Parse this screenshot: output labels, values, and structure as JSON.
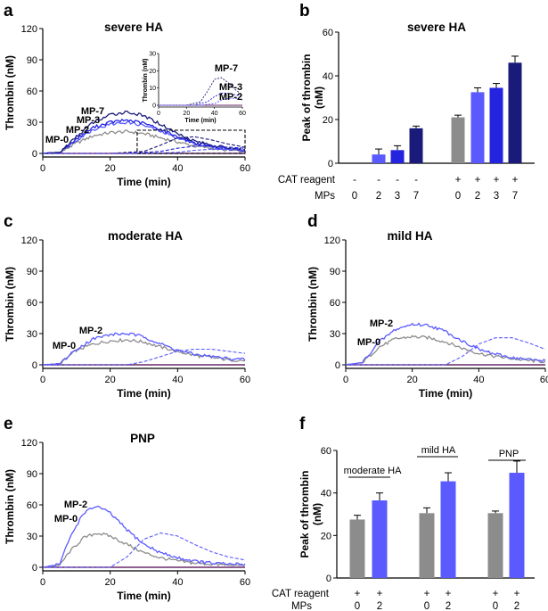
{
  "colors": {
    "MP-0": "#8c8c8c",
    "MP-2": "#5a5aff",
    "MP-3": "#2323e0",
    "MP-7": "#1a1a7a",
    "baseline": "#6a2a6a"
  },
  "line_panels": [
    {
      "letter": "a",
      "title": "severe HA",
      "xlabel": "Time (min)",
      "ylabel": "Thrombin (nM)",
      "xticks": [
        "0",
        "20",
        "40",
        "60"
      ],
      "yticks": [
        "0",
        "30",
        "60",
        "90",
        "120"
      ],
      "curve_labels": [
        "MP-7",
        "MP-3",
        "MP-2",
        "MP-0"
      ],
      "inset": {
        "ylabel": "Thrombin (nM)",
        "xlabel": "Time (min)",
        "xticks": [
          "0",
          "20",
          "40",
          "60"
        ],
        "yticks": [
          "0",
          "10",
          "20",
          "30"
        ],
        "curve_labels": [
          "MP-7",
          "MP-3",
          "MP-2"
        ]
      }
    },
    {
      "letter": "c",
      "title": "moderate HA",
      "xlabel": "Time (min)",
      "ylabel": "Thrombin (nM)",
      "xticks": [
        "0",
        "20",
        "40",
        "60"
      ],
      "yticks": [
        "0",
        "30",
        "60",
        "90",
        "120"
      ],
      "curve_labels": [
        "MP-2",
        "MP-0"
      ]
    },
    {
      "letter": "d",
      "title": "mild HA",
      "xlabel": "Time (min)",
      "ylabel": "Thrombin (nM)",
      "xticks": [
        "0",
        "20",
        "40",
        "60"
      ],
      "yticks": [
        "0",
        "30",
        "60",
        "90",
        "120"
      ],
      "curve_labels": [
        "MP-2",
        "MP-0"
      ]
    },
    {
      "letter": "e",
      "title": "PNP",
      "xlabel": "Time (min)",
      "ylabel": "Thrombin (nM)",
      "xticks": [
        "0",
        "20",
        "40",
        "60"
      ],
      "yticks": [
        "0",
        "30",
        "60",
        "90",
        "120"
      ],
      "curve_labels": [
        "MP-2",
        "MP-0"
      ]
    }
  ],
  "bar_panels": [
    {
      "letter": "b",
      "title": "severe HA",
      "ylabel_lines": [
        "Peak of thrombin",
        "(nM)"
      ],
      "yticks": [
        "0",
        "20",
        "40",
        "60"
      ],
      "cat_reagent_label": "CAT reagent",
      "mps_label": "MPs",
      "cat_reagent_row": [
        "-",
        "-",
        "-",
        "-",
        "+",
        "+",
        "+",
        "+"
      ],
      "mps_row": [
        "0",
        "2",
        "3",
        "7",
        "0",
        "2",
        "3",
        "7"
      ]
    },
    {
      "letter": "f",
      "title": "",
      "ylabel_lines": [
        "Peak of thrombin",
        "(nM)"
      ],
      "yticks": [
        "0",
        "20",
        "40",
        "60"
      ],
      "cat_reagent_label": "CAT reagent",
      "mps_label": "MPs",
      "cat_reagent_row": [
        "+",
        "+",
        "+",
        "+",
        "+",
        "+"
      ],
      "mps_row": [
        "0",
        "2",
        "0",
        "2",
        "0",
        "2"
      ],
      "group_labels": [
        "moderate HA",
        "mild HA",
        "PNP"
      ]
    }
  ],
  "chart_data": [
    {
      "panel": "a",
      "type": "line",
      "title": "severe HA",
      "xlabel": "Time (min)",
      "ylabel": "Thrombin (nM)",
      "xlim": [
        0,
        60
      ],
      "ylim": [
        0,
        120
      ],
      "series": [
        {
          "name": "MP-0",
          "x": [
            0,
            5,
            10,
            15,
            20,
            25,
            30,
            35,
            40,
            45,
            50,
            55,
            60
          ],
          "y": [
            0,
            0.5,
            10,
            17,
            20,
            21,
            19,
            15,
            11,
            7,
            5,
            3,
            2
          ]
        },
        {
          "name": "MP-2",
          "x": [
            0,
            5,
            10,
            15,
            20,
            25,
            30,
            35,
            40,
            45,
            50,
            55,
            60
          ],
          "y": [
            0,
            1,
            13,
            23,
            28,
            30,
            27,
            21,
            15,
            10,
            6,
            4,
            3
          ]
        },
        {
          "name": "MP-3",
          "x": [
            0,
            5,
            10,
            15,
            20,
            25,
            30,
            35,
            40,
            45,
            50,
            55,
            60
          ],
          "y": [
            0,
            1,
            14,
            25,
            30,
            32,
            29,
            23,
            16,
            10,
            7,
            4,
            3
          ]
        },
        {
          "name": "MP-7",
          "x": [
            0,
            5,
            10,
            15,
            20,
            25,
            30,
            35,
            40,
            45,
            50,
            55,
            60
          ],
          "y": [
            0,
            1,
            16,
            30,
            37,
            40,
            36,
            28,
            19,
            12,
            8,
            5,
            3
          ]
        },
        {
          "name": "MP-7 (no CAT reagent, dashed)",
          "x": [
            0,
            20,
            30,
            35,
            40,
            45,
            50,
            55,
            60
          ],
          "y": [
            0,
            0,
            2,
            8,
            15,
            16,
            13,
            9,
            6
          ]
        },
        {
          "name": "MP-3 (no CAT reagent, dashed)",
          "x": [
            0,
            25,
            35,
            40,
            45,
            50,
            55,
            60
          ],
          "y": [
            0,
            0,
            2,
            5,
            7,
            7,
            6,
            5
          ]
        },
        {
          "name": "MP-2 (no CAT reagent, dashed)",
          "x": [
            0,
            30,
            40,
            45,
            50,
            55,
            60
          ],
          "y": [
            0,
            0,
            1,
            3,
            4,
            4,
            3
          ]
        }
      ]
    },
    {
      "panel": "b",
      "type": "bar",
      "title": "severe HA",
      "ylabel": "Peak of thrombin (nM)",
      "ylim": [
        0,
        60
      ],
      "categories": [
        "- / 0",
        "- / 2",
        "- / 3",
        "- / 7",
        "+ / 0",
        "+ / 2",
        "+ / 3",
        "+ / 7"
      ],
      "values": [
        0,
        4,
        6,
        16,
        21,
        32.5,
        34.5,
        46
      ],
      "errors": [
        0,
        2.5,
        2,
        1,
        1,
        2,
        2,
        3
      ]
    },
    {
      "panel": "c",
      "type": "line",
      "title": "moderate HA",
      "xlabel": "Time (min)",
      "ylabel": "Thrombin (nM)",
      "xlim": [
        0,
        60
      ],
      "ylim": [
        0,
        120
      ],
      "series": [
        {
          "name": "MP-0",
          "x": [
            0,
            5,
            10,
            15,
            20,
            25,
            30,
            35,
            40,
            45,
            50,
            55,
            60
          ],
          "y": [
            0,
            1,
            14,
            20,
            23,
            24,
            22,
            17,
            13,
            9,
            7,
            5,
            4
          ]
        },
        {
          "name": "MP-2",
          "x": [
            0,
            5,
            10,
            15,
            20,
            25,
            30,
            35,
            40,
            45,
            50,
            55,
            60
          ],
          "y": [
            0,
            1,
            15,
            25,
            29,
            30,
            27,
            20,
            14,
            10,
            8,
            6,
            5
          ]
        },
        {
          "name": "MP-2 (no CAT reagent, dashed)",
          "x": [
            0,
            25,
            30,
            35,
            40,
            45,
            50,
            55,
            60
          ],
          "y": [
            0,
            0,
            3,
            8,
            13,
            15,
            15,
            13,
            11
          ]
        }
      ]
    },
    {
      "panel": "d",
      "type": "line",
      "title": "mild HA",
      "xlabel": "Time (min)",
      "ylabel": "Thrombin (nM)",
      "xlim": [
        0,
        60
      ],
      "ylim": [
        0,
        120
      ],
      "series": [
        {
          "name": "MP-0",
          "x": [
            0,
            5,
            10,
            15,
            20,
            25,
            30,
            35,
            40,
            45,
            50,
            55,
            60
          ],
          "y": [
            0,
            2,
            17,
            25,
            27,
            26,
            22,
            16,
            11,
            8,
            6,
            4,
            3
          ]
        },
        {
          "name": "MP-2",
          "x": [
            0,
            5,
            10,
            15,
            20,
            25,
            30,
            35,
            40,
            45,
            50,
            55,
            60
          ],
          "y": [
            0,
            2,
            22,
            34,
            39,
            38,
            32,
            23,
            15,
            10,
            7,
            5,
            4
          ]
        },
        {
          "name": "MP-2 (no CAT reagent, dashed)",
          "x": [
            0,
            30,
            35,
            40,
            45,
            50,
            55,
            60
          ],
          "y": [
            0,
            0,
            8,
            20,
            26,
            26,
            21,
            15
          ]
        }
      ]
    },
    {
      "panel": "e",
      "type": "line",
      "title": "PNP",
      "xlabel": "Time (min)",
      "ylabel": "Thrombin (nM)",
      "xlim": [
        0,
        60
      ],
      "ylim": [
        0,
        120
      ],
      "series": [
        {
          "name": "MP-0",
          "x": [
            0,
            5,
            8,
            12,
            16,
            20,
            25,
            30,
            35,
            40,
            45,
            50,
            55,
            60
          ],
          "y": [
            0,
            2,
            15,
            28,
            33,
            30,
            22,
            14,
            9,
            6,
            4,
            3,
            2,
            2
          ]
        },
        {
          "name": "MP-2",
          "x": [
            0,
            5,
            8,
            12,
            16,
            20,
            25,
            30,
            35,
            40,
            45,
            50,
            55,
            60
          ],
          "y": [
            0,
            3,
            28,
            52,
            59,
            52,
            36,
            22,
            14,
            9,
            6,
            4,
            3,
            3
          ]
        },
        {
          "name": "MP-2 (no CAT reagent, dashed)",
          "x": [
            0,
            20,
            25,
            30,
            35,
            40,
            45,
            50,
            55,
            60
          ],
          "y": [
            0,
            0,
            10,
            27,
            33,
            30,
            22,
            15,
            10,
            7
          ]
        }
      ]
    },
    {
      "panel": "f",
      "type": "bar",
      "ylabel": "Peak of thrombin (nM)",
      "ylim": [
        0,
        60
      ],
      "categories": [
        "moderate HA MPs 0",
        "moderate HA MPs 2",
        "mild HA MPs 0",
        "mild HA MPs 2",
        "PNP MPs 0",
        "PNP MPs 2"
      ],
      "values": [
        27.5,
        36.5,
        30.5,
        45.5,
        30.5,
        49.5
      ],
      "errors": [
        2,
        3.5,
        2.5,
        4,
        1,
        5.5
      ]
    }
  ]
}
